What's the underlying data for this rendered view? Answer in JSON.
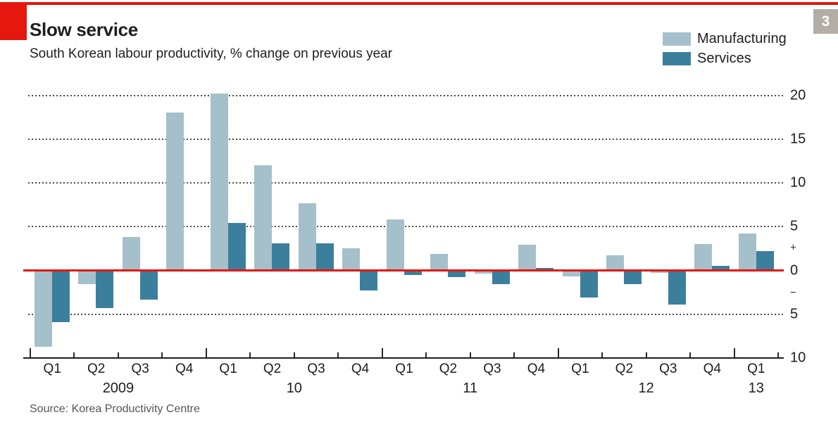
{
  "header": {
    "title": "Slow service",
    "subtitle": "South Korean labour productivity, % change on previous year"
  },
  "page_badge": {
    "label": "3",
    "background": "#b3ada6"
  },
  "colors": {
    "accent_red": "#e5170e",
    "manufacturing": "#a5c0ca",
    "services": "#3c7f9c",
    "gridline": "#4a4a4a",
    "axis_text": "#1e1e1e",
    "source_text": "#555555"
  },
  "legend": {
    "items": [
      {
        "label": "Manufacturing",
        "color": "#a5c0ca"
      },
      {
        "label": "Services",
        "color": "#3c7f9c"
      }
    ]
  },
  "source": {
    "text": "Source: Korea Productivity Centre"
  },
  "chart_data": {
    "type": "bar",
    "categories": [
      "2009 Q1",
      "2009 Q2",
      "2009 Q3",
      "2009 Q4",
      "2010 Q1",
      "2010 Q2",
      "2010 Q3",
      "2010 Q4",
      "2011 Q1",
      "2011 Q2",
      "2011 Q3",
      "2011 Q4",
      "2012 Q1",
      "2012 Q2",
      "2012 Q3",
      "2012 Q4",
      "2013 Q1"
    ],
    "series": [
      {
        "name": "Manufacturing",
        "color": "#a5c0ca",
        "values": [
          -8.7,
          -1.6,
          3.8,
          18.1,
          20.2,
          12.0,
          7.7,
          2.5,
          5.8,
          1.9,
          -0.4,
          2.9,
          -0.7,
          1.7,
          -0.3,
          3.0,
          4.2
        ]
      },
      {
        "name": "Services",
        "color": "#3c7f9c",
        "values": [
          -5.9,
          -4.3,
          -3.3,
          0.0,
          5.4,
          3.1,
          3.1,
          -2.3,
          -0.5,
          -0.8,
          -1.6,
          0.3,
          -3.1,
          -1.6,
          -3.9,
          0.5,
          2.2
        ]
      }
    ],
    "x_axis": {
      "quarter_labels": [
        "Q1",
        "Q2",
        "Q3",
        "Q4",
        "Q1",
        "Q2",
        "Q3",
        "Q4",
        "Q1",
        "Q2",
        "Q3",
        "Q4",
        "Q1",
        "Q2",
        "Q3",
        "Q4",
        "Q1"
      ],
      "year_labels": [
        {
          "label": "2009",
          "span": 4
        },
        {
          "label": "10",
          "span": 4
        },
        {
          "label": "11",
          "span": 4
        },
        {
          "label": "12",
          "span": 4
        },
        {
          "label": "13",
          "span": 1
        }
      ]
    },
    "y_axis": {
      "range": [
        -10,
        20.7
      ],
      "gridlines": [
        20,
        15,
        10,
        5,
        -5
      ],
      "zero_line": 0,
      "labels": [
        {
          "text": "20",
          "at": 20
        },
        {
          "text": "15",
          "at": 15
        },
        {
          "text": "10",
          "at": 10
        },
        {
          "text": "5",
          "at": 5
        },
        {
          "text": "+",
          "at": 2.65
        },
        {
          "text": "0",
          "at": 0
        },
        {
          "text": "−",
          "at": -2.5
        },
        {
          "text": "5",
          "at": -5
        },
        {
          "text": "10",
          "at": -10
        }
      ]
    },
    "title": "Slow service",
    "ylabel": "% change on previous year",
    "grid": "dotted-horizontal",
    "legend_position": "top-right"
  }
}
